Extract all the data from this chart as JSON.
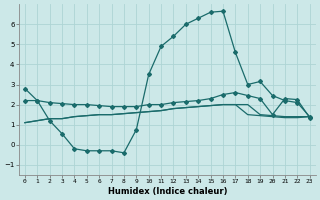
{
  "xlabel": "Humidex (Indice chaleur)",
  "background_color": "#cce8e8",
  "grid_color": "#aed4d4",
  "line_color": "#1a6b6b",
  "x_ticks": [
    0,
    1,
    2,
    3,
    4,
    5,
    6,
    7,
    8,
    9,
    10,
    11,
    12,
    13,
    14,
    15,
    16,
    17,
    18,
    19,
    20,
    21,
    22,
    23
  ],
  "y_ticks": [
    -1,
    0,
    1,
    2,
    3,
    4,
    5,
    6
  ],
  "ylim": [
    -1.5,
    7.0
  ],
  "xlim": [
    -0.5,
    23.5
  ],
  "series1_x": [
    0,
    1,
    2,
    3,
    4,
    5,
    6,
    7,
    8,
    9,
    10,
    11,
    12,
    13,
    14,
    15,
    16,
    17,
    18,
    19,
    20,
    21,
    22,
    23
  ],
  "series1_y": [
    2.8,
    2.2,
    1.2,
    0.55,
    -0.2,
    -0.3,
    -0.3,
    -0.3,
    -0.4,
    0.75,
    3.5,
    4.9,
    5.4,
    6.0,
    6.3,
    6.6,
    6.65,
    4.6,
    3.0,
    3.15,
    2.45,
    2.2,
    2.1,
    1.4
  ],
  "series2_x": [
    0,
    1,
    2,
    3,
    4,
    5,
    6,
    7,
    8,
    9,
    10,
    11,
    12,
    13,
    14,
    15,
    16,
    17,
    18,
    19,
    20,
    21,
    22,
    23
  ],
  "series2_y": [
    2.2,
    2.2,
    2.1,
    2.05,
    2.0,
    2.0,
    1.95,
    1.9,
    1.9,
    1.9,
    2.0,
    2.0,
    2.1,
    2.15,
    2.2,
    2.3,
    2.5,
    2.6,
    2.45,
    2.3,
    1.5,
    2.3,
    2.25,
    1.35
  ],
  "series3_x": [
    0,
    1,
    2,
    3,
    4,
    5,
    6,
    7,
    8,
    9,
    10,
    11,
    12,
    13,
    14,
    15,
    16,
    17,
    18,
    19,
    20,
    21,
    22,
    23
  ],
  "series3_y": [
    1.1,
    1.2,
    1.3,
    1.3,
    1.4,
    1.45,
    1.5,
    1.5,
    1.55,
    1.6,
    1.65,
    1.7,
    1.8,
    1.85,
    1.9,
    1.95,
    2.0,
    2.0,
    2.0,
    1.5,
    1.45,
    1.4,
    1.4,
    1.4
  ],
  "series4_x": [
    0,
    1,
    2,
    3,
    4,
    5,
    6,
    7,
    8,
    9,
    10,
    11,
    12,
    13,
    14,
    15,
    16,
    17,
    18,
    19,
    20,
    21,
    22,
    23
  ],
  "series4_y": [
    1.1,
    1.2,
    1.3,
    1.3,
    1.4,
    1.45,
    1.5,
    1.5,
    1.55,
    1.6,
    1.65,
    1.7,
    1.8,
    1.85,
    1.9,
    1.95,
    2.0,
    2.0,
    1.5,
    1.45,
    1.4,
    1.35,
    1.35,
    1.4
  ]
}
